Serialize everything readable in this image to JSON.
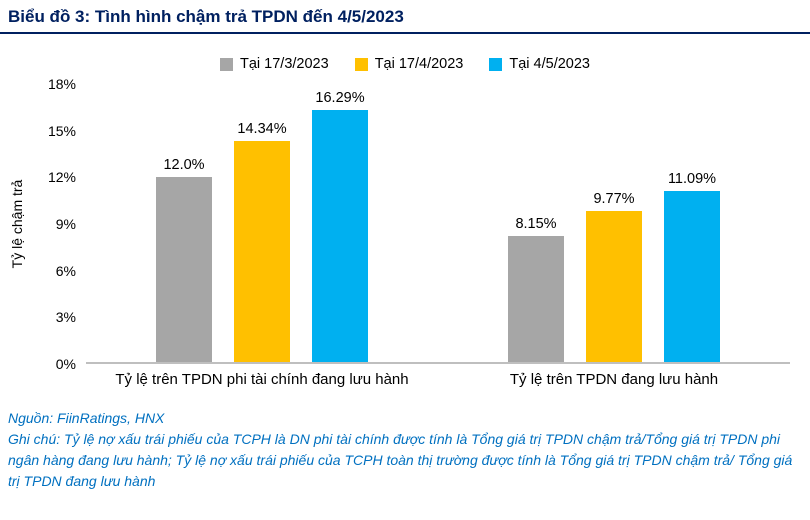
{
  "title": "Biểu đồ 3: Tình hình chậm trả TPDN đến 4/5/2023",
  "chart_data": {
    "type": "bar",
    "title": "Biểu đồ 3: Tình hình chậm trả TPDN đến 4/5/2023",
    "categories": [
      "Tỷ lệ trên TPDN phi tài chính đang lưu hành",
      "Tỷ lệ trên TPDN đang lưu hành"
    ],
    "series": [
      {
        "name": "Tại 17/3/2023",
        "color": "#A6A6A6",
        "values": [
          12.0,
          8.15
        ],
        "labels": [
          "12.0%",
          "8.15%"
        ]
      },
      {
        "name": "Tại 17/4/2023",
        "color": "#FFC000",
        "values": [
          14.34,
          9.77
        ],
        "labels": [
          "14.34%",
          "9.77%"
        ]
      },
      {
        "name": "Tại 4/5/2023",
        "color": "#00B0F0",
        "values": [
          16.29,
          11.09
        ],
        "labels": [
          "16.29%",
          "11.09%"
        ]
      }
    ],
    "xlabel": "",
    "ylabel": "Tỷ lệ chậm trả",
    "ylim": [
      0,
      18
    ],
    "ytick_step": 3,
    "ytick_suffix": "%",
    "legend_position": "top",
    "grid": false
  },
  "footer": {
    "source": "Nguồn: FiinRatings, HNX",
    "note": "Ghi chú: Tỷ lệ nợ xấu trái phiếu của TCPH là DN phi tài chính được tính là Tổng giá trị TPDN chậm trả/Tổng giá trị TPDN phi ngân hàng đang lưu hành; Tỷ lệ nợ xấu trái phiếu của TCPH toàn thị trường được tính là Tổng giá trị TPDN chậm trả/ Tổng giá trị TPDN đang lưu hành"
  },
  "colors": {
    "title": "#002060",
    "divider": "#002060",
    "footer_text": "#0070C0",
    "axis_line": "#BFBFBF"
  }
}
